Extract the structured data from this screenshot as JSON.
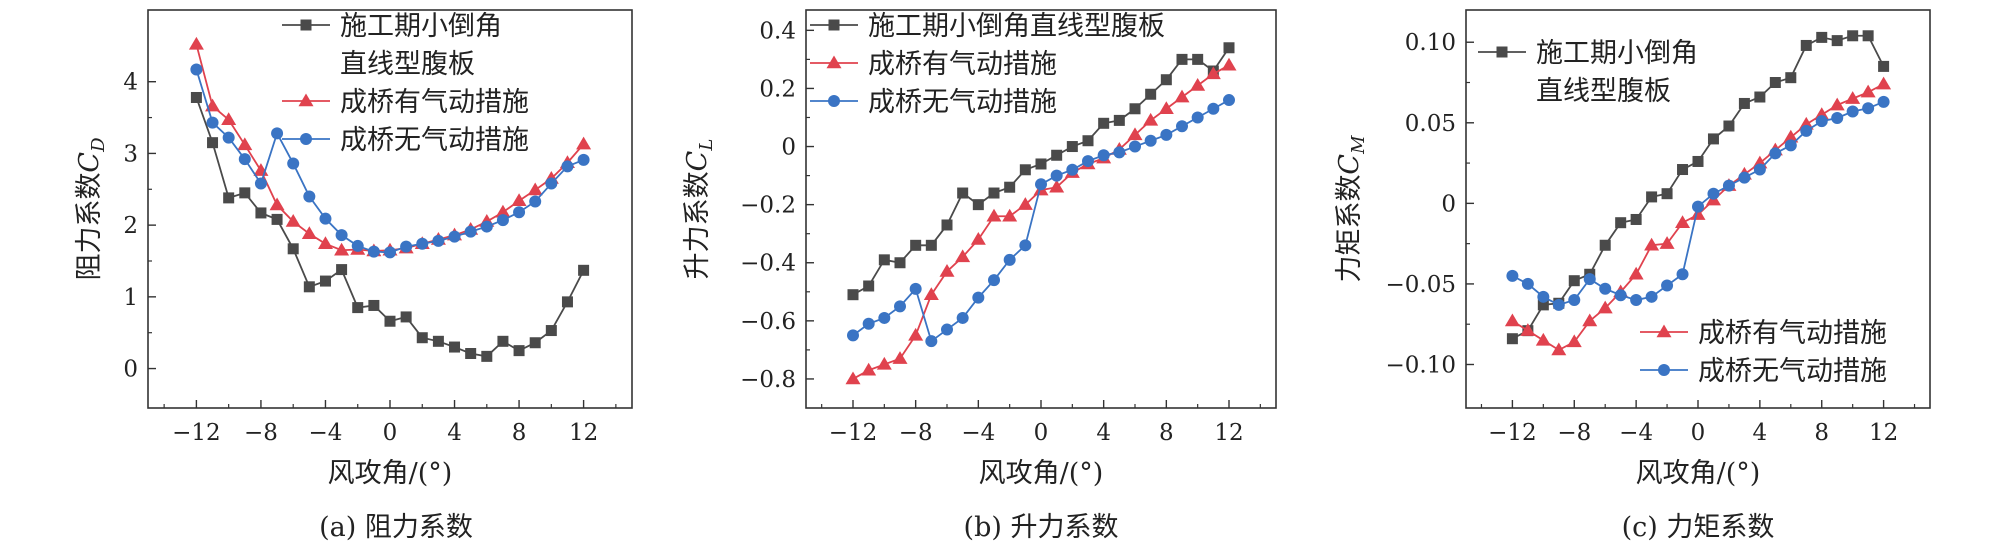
{
  "colors": {
    "construction": "#4a4a4a",
    "with_measures": "#e0424e",
    "without_measures": "#3a74c4",
    "axis": "#333333"
  },
  "chart_data": [
    {
      "id": "cd",
      "type": "line",
      "caption": "(a) 阻力系数",
      "xlabel": "风攻角/(°)",
      "ylabel": "阻力系数",
      "ylabel_sub": "D",
      "ylabel_italic": "C",
      "xlim": [
        -15,
        15
      ],
      "ylim": [
        -0.55,
        5.0
      ],
      "xticks": [
        -12,
        -8,
        -4,
        0,
        4,
        8,
        12
      ],
      "xtick_labels": [
        "−12",
        "−8",
        "−4",
        "0",
        "4",
        "8",
        "12"
      ],
      "yticks": [
        0,
        1,
        2,
        3,
        4
      ],
      "ytick_labels": [
        "0",
        "1",
        "2",
        "3",
        "4"
      ],
      "legend_position": "top-right",
      "legend": [
        {
          "series": "construction",
          "lines": [
            "施工期小倒角",
            "直线型腹板"
          ]
        },
        {
          "series": "with_measures",
          "lines": [
            "成桥有气动措施"
          ]
        },
        {
          "series": "without_measures",
          "lines": [
            "成桥无气动措施"
          ]
        }
      ],
      "x": [
        -12,
        -11,
        -10,
        -9,
        -8,
        -7,
        -6,
        -5,
        -4,
        -3,
        -2,
        -1,
        0,
        1,
        2,
        3,
        4,
        5,
        6,
        7,
        8,
        9,
        10,
        11,
        12
      ],
      "series": [
        {
          "key": "construction",
          "name": "施工期小倒角直线型腹板",
          "marker": "square",
          "values": [
            3.78,
            3.15,
            2.38,
            2.45,
            2.17,
            2.08,
            1.67,
            1.14,
            1.22,
            1.38,
            0.85,
            0.88,
            0.66,
            0.72,
            0.43,
            0.38,
            0.3,
            0.21,
            0.17,
            0.38,
            0.25,
            0.36,
            0.53,
            0.93,
            1.37
          ]
        },
        {
          "key": "with_measures",
          "name": "成桥有气动措施",
          "marker": "triangle",
          "values": [
            4.52,
            3.66,
            3.47,
            3.12,
            2.76,
            2.28,
            2.05,
            1.88,
            1.74,
            1.65,
            1.66,
            1.64,
            1.65,
            1.68,
            1.74,
            1.8,
            1.86,
            1.94,
            2.05,
            2.18,
            2.34,
            2.49,
            2.65,
            2.87,
            3.13
          ]
        },
        {
          "key": "without_measures",
          "name": "成桥无气动措施",
          "marker": "circle",
          "values": [
            4.17,
            3.43,
            3.22,
            2.92,
            2.58,
            3.28,
            2.86,
            2.4,
            2.09,
            1.86,
            1.71,
            1.63,
            1.62,
            1.7,
            1.74,
            1.78,
            1.84,
            1.91,
            1.98,
            2.07,
            2.18,
            2.33,
            2.58,
            2.82,
            2.91
          ]
        }
      ]
    },
    {
      "id": "cl",
      "type": "line",
      "caption": "(b) 升力系数",
      "xlabel": "风攻角/(°)",
      "ylabel": "升力系数",
      "ylabel_sub": "L",
      "ylabel_italic": "C",
      "xlim": [
        -15,
        15
      ],
      "ylim": [
        -0.9,
        0.47
      ],
      "xticks": [
        -12,
        -8,
        -4,
        0,
        4,
        8,
        12
      ],
      "xtick_labels": [
        "−12",
        "−8",
        "−4",
        "0",
        "4",
        "8",
        "12"
      ],
      "yticks": [
        -0.8,
        -0.6,
        -0.4,
        -0.2,
        0,
        0.2,
        0.4
      ],
      "ytick_labels": [
        "−0.8",
        "−0.6",
        "−0.4",
        "−0.2",
        "0",
        "0.2",
        "0.4"
      ],
      "legend_position": "top-left",
      "legend": [
        {
          "series": "construction",
          "lines": [
            "施工期小倒角直线型腹板"
          ]
        },
        {
          "series": "with_measures",
          "lines": [
            "成桥有气动措施"
          ]
        },
        {
          "series": "without_measures",
          "lines": [
            "成桥无气动措施"
          ]
        }
      ],
      "x": [
        -12,
        -11,
        -10,
        -9,
        -8,
        -7,
        -6,
        -5,
        -4,
        -3,
        -2,
        -1,
        0,
        1,
        2,
        3,
        4,
        5,
        6,
        7,
        8,
        9,
        10,
        11,
        12
      ],
      "series": [
        {
          "key": "construction",
          "name": "施工期小倒角直线型腹板",
          "marker": "square",
          "values": [
            -0.51,
            -0.48,
            -0.39,
            -0.4,
            -0.34,
            -0.34,
            -0.27,
            -0.16,
            -0.2,
            -0.16,
            -0.14,
            -0.08,
            -0.06,
            -0.03,
            0.0,
            0.02,
            0.08,
            0.09,
            0.13,
            0.18,
            0.23,
            0.3,
            0.3,
            0.26,
            0.34
          ]
        },
        {
          "key": "with_measures",
          "name": "成桥有气动措施",
          "marker": "triangle",
          "values": [
            -0.8,
            -0.77,
            -0.75,
            -0.73,
            -0.65,
            -0.51,
            -0.43,
            -0.38,
            -0.32,
            -0.24,
            -0.24,
            -0.2,
            -0.15,
            -0.14,
            -0.09,
            -0.06,
            -0.04,
            -0.01,
            0.04,
            0.09,
            0.13,
            0.17,
            0.21,
            0.25,
            0.28
          ]
        },
        {
          "key": "without_measures",
          "name": "成桥无气动措施",
          "marker": "circle",
          "values": [
            -0.65,
            -0.61,
            -0.59,
            -0.55,
            -0.49,
            -0.67,
            -0.63,
            -0.59,
            -0.52,
            -0.46,
            -0.39,
            -0.34,
            -0.13,
            -0.1,
            -0.08,
            -0.05,
            -0.03,
            -0.02,
            0.0,
            0.02,
            0.04,
            0.07,
            0.1,
            0.13,
            0.16
          ]
        }
      ]
    },
    {
      "id": "cm",
      "type": "line",
      "caption": "(c) 力矩系数",
      "xlabel": "风攻角/(°)",
      "ylabel": "力矩系数",
      "ylabel_sub": "M",
      "ylabel_italic": "C",
      "xlim": [
        -15,
        15
      ],
      "ylim": [
        -0.127,
        0.12
      ],
      "xticks": [
        -12,
        -8,
        -4,
        0,
        4,
        8,
        12
      ],
      "xtick_labels": [
        "−12",
        "−8",
        "−4",
        "0",
        "4",
        "8",
        "12"
      ],
      "yticks": [
        -0.1,
        -0.05,
        0,
        0.05,
        0.1
      ],
      "ytick_labels": [
        "−0.10",
        "−0.05",
        "0",
        "0.05",
        "0.10"
      ],
      "legend_position": "split",
      "legend": [
        {
          "series": "construction",
          "lines": [
            "施工期小倒角",
            "直线型腹板"
          ],
          "place": "top-left"
        },
        {
          "series": "with_measures",
          "lines": [
            "成桥有气动措施"
          ],
          "place": "bottom-right"
        },
        {
          "series": "without_measures",
          "lines": [
            "成桥无气动措施"
          ],
          "place": "bottom-right"
        }
      ],
      "x": [
        -12,
        -11,
        -10,
        -9,
        -8,
        -7,
        -6,
        -5,
        -4,
        -3,
        -2,
        -1,
        0,
        1,
        2,
        3,
        4,
        5,
        6,
        7,
        8,
        9,
        10,
        11,
        12
      ],
      "series": [
        {
          "key": "construction",
          "name": "施工期小倒角直线型腹板",
          "marker": "square",
          "values": [
            -0.084,
            -0.079,
            -0.063,
            -0.062,
            -0.048,
            -0.044,
            -0.026,
            -0.012,
            -0.01,
            0.004,
            0.006,
            0.021,
            0.026,
            0.04,
            0.048,
            0.062,
            0.066,
            0.075,
            0.078,
            0.098,
            0.103,
            0.101,
            0.104,
            0.104,
            0.085
          ]
        },
        {
          "key": "with_measures",
          "name": "成桥有气动措施",
          "marker": "triangle",
          "values": [
            -0.073,
            -0.079,
            -0.085,
            -0.091,
            -0.086,
            -0.073,
            -0.065,
            -0.055,
            -0.044,
            -0.026,
            -0.025,
            -0.012,
            -0.007,
            0.002,
            0.011,
            0.018,
            0.025,
            0.033,
            0.041,
            0.049,
            0.055,
            0.061,
            0.065,
            0.069,
            0.074
          ]
        },
        {
          "key": "without_measures",
          "name": "成桥无气动措施",
          "marker": "circle",
          "values": [
            -0.045,
            -0.05,
            -0.058,
            -0.063,
            -0.06,
            -0.047,
            -0.053,
            -0.057,
            -0.06,
            -0.058,
            -0.051,
            -0.044,
            -0.002,
            0.006,
            0.011,
            0.016,
            0.021,
            0.031,
            0.036,
            0.045,
            0.051,
            0.053,
            0.057,
            0.059,
            0.063
          ]
        }
      ]
    }
  ]
}
